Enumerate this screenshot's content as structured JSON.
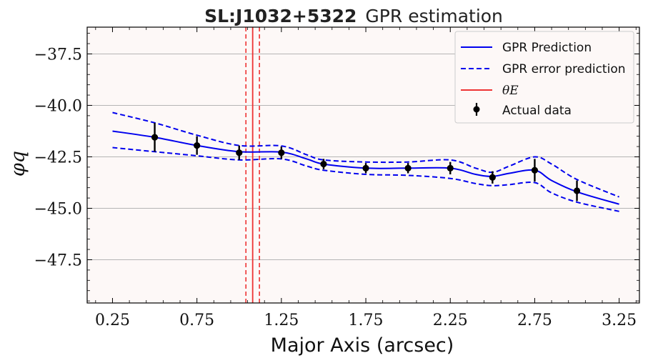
{
  "chart_data": {
    "type": "line",
    "title_bold": "SL:J1032+5322",
    "title_rest": "GPR estimation",
    "xlabel": "Major Axis (arcsec)",
    "ylabel": "φq",
    "xlim": [
      0.1,
      3.37
    ],
    "ylim": [
      -49.6,
      -36.2
    ],
    "x_ticks": [
      0.25,
      0.75,
      1.25,
      1.75,
      2.25,
      2.75,
      3.25
    ],
    "x_tick_labels": [
      "0.25",
      "0.75",
      "1.25",
      "1.75",
      "2.25",
      "2.75",
      "3.25"
    ],
    "y_ticks": [
      -37.5,
      -40.0,
      -42.5,
      -45.0,
      -47.5
    ],
    "y_tick_labels": [
      "−37.5",
      "−40.0",
      "−42.5",
      "−45.0",
      "−47.5"
    ],
    "grid": "horizontal",
    "background": "#fdf8f7",
    "legend_position": "top-right",
    "series": [
      {
        "name": "GPR Prediction",
        "style": "solid",
        "color": "#0000ee",
        "x": [
          0.25,
          0.5,
          0.75,
          1.0,
          1.25,
          1.4,
          1.5,
          1.75,
          2.0,
          2.25,
          2.4,
          2.5,
          2.6,
          2.75,
          2.85,
          3.0,
          3.25
        ],
        "y": [
          -41.25,
          -41.55,
          -41.95,
          -42.25,
          -42.27,
          -42.6,
          -42.85,
          -43.05,
          -43.05,
          -43.05,
          -43.35,
          -43.45,
          -43.3,
          -43.15,
          -43.65,
          -44.2,
          -44.8
        ]
      },
      {
        "name": "GPR error prediction",
        "style": "dashed",
        "color": "#0000ee",
        "x": [
          0.25,
          0.5,
          0.75,
          1.0,
          1.25,
          1.4,
          1.5,
          1.75,
          2.0,
          2.25,
          2.4,
          2.5,
          2.6,
          2.75,
          2.85,
          3.0,
          3.25
        ],
        "y": [
          -40.35,
          -40.85,
          -41.45,
          -41.95,
          -41.97,
          -42.4,
          -42.65,
          -42.75,
          -42.75,
          -42.65,
          -43.05,
          -43.25,
          -42.95,
          -42.5,
          -42.85,
          -43.6,
          -44.45
        ]
      },
      {
        "name": "",
        "style": "dashed",
        "color": "#0000ee",
        "x": [
          0.25,
          0.5,
          0.75,
          1.0,
          1.25,
          1.4,
          1.5,
          1.75,
          2.0,
          2.25,
          2.4,
          2.5,
          2.6,
          2.75,
          2.85,
          3.0,
          3.25
        ],
        "y": [
          -42.05,
          -42.25,
          -42.45,
          -42.65,
          -42.6,
          -42.95,
          -43.15,
          -43.35,
          -43.4,
          -43.55,
          -43.8,
          -43.9,
          -43.85,
          -43.75,
          -44.25,
          -44.7,
          -45.15
        ]
      }
    ],
    "theta_e": {
      "name": "θE",
      "x": 1.08,
      "bounds": [
        1.04,
        1.12
      ],
      "color": "#ee3333"
    },
    "actual_data": {
      "name": "Actual data",
      "x": [
        0.5,
        0.75,
        1.0,
        1.25,
        1.5,
        1.75,
        2.0,
        2.25,
        2.5,
        2.75,
        3.0
      ],
      "y": [
        -41.55,
        -41.95,
        -42.3,
        -42.3,
        -42.85,
        -43.05,
        -43.05,
        -43.05,
        -43.5,
        -43.15,
        -44.15
      ],
      "yerr": [
        0.7,
        0.45,
        0.35,
        0.3,
        0.25,
        0.25,
        0.25,
        0.3,
        0.3,
        0.55,
        0.5
      ]
    }
  }
}
